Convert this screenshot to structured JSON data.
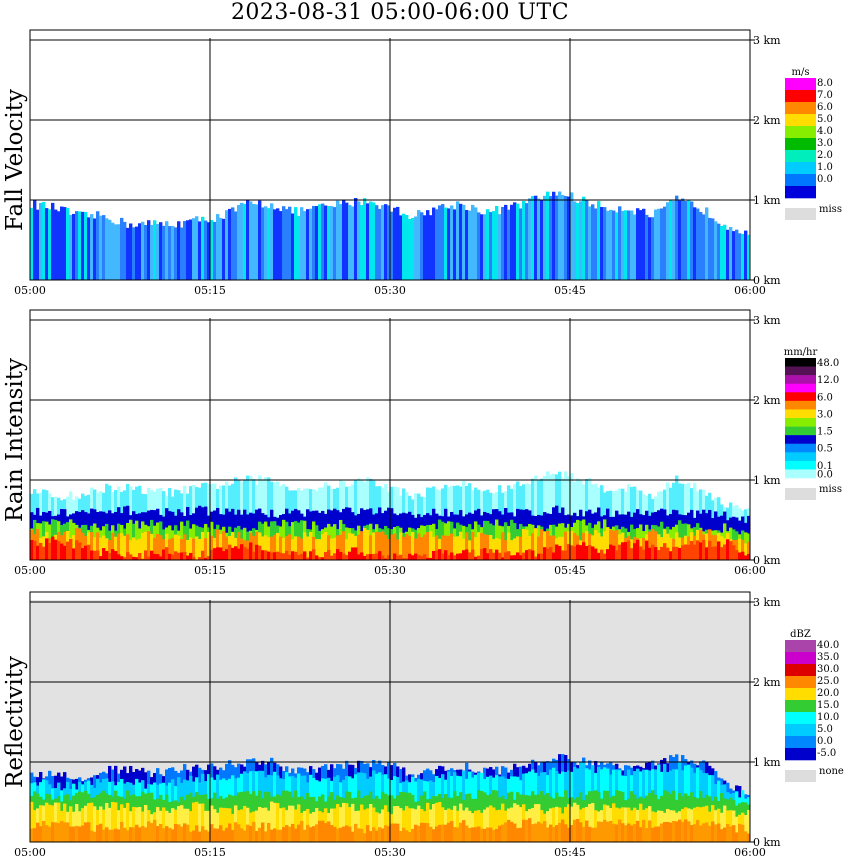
{
  "chart_data": {
    "title": "2023-08-31   05:00-06:00 UTC",
    "type": "heatmap",
    "x_ticks": [
      "05:00",
      "05:15",
      "05:30",
      "05:45",
      "06:00"
    ],
    "y_ticks": [
      "0 km",
      "1 km",
      "2 km",
      "3 km"
    ],
    "ylim_km": [
      0,
      3
    ],
    "grid": true,
    "panels": [
      {
        "id": "fall-velocity",
        "ylabel": "Fall Velocity",
        "unit": "m/s",
        "legend": [
          {
            "label": "8.0",
            "color": "#ff00ff"
          },
          {
            "label": "7.0",
            "color": "#ff0000"
          },
          {
            "label": "6.0",
            "color": "#ff8800"
          },
          {
            "label": "5.0",
            "color": "#ffdd00"
          },
          {
            "label": "4.0",
            "color": "#88ee00"
          },
          {
            "label": "3.0",
            "color": "#00bb00"
          },
          {
            "label": "2.0",
            "color": "#00eebb"
          },
          {
            "label": "1.0",
            "color": "#00ccff"
          },
          {
            "label": "0.0",
            "color": "#0077ff"
          },
          {
            "label": "",
            "color": "#0000dd"
          }
        ],
        "missing_label": "miss",
        "layers": [
          {
            "name": "main",
            "colors": [
              "#1133ff",
              "#2a7fff",
              "#44b8ff",
              "#00e8ee"
            ],
            "top": [
              0.95,
              0.9,
              0.8,
              0.8,
              0.7,
              0.7,
              0.7,
              0.75,
              0.8,
              0.95,
              0.95,
              0.85,
              0.9,
              0.95,
              1.0,
              0.9,
              0.8,
              0.9,
              0.95,
              0.85,
              0.9,
              1.0,
              1.1,
              1.0,
              0.9,
              0.9,
              0.8,
              1.0,
              0.9,
              0.7,
              0.6
            ]
          }
        ]
      },
      {
        "id": "rain-intensity",
        "ylabel": "Rain Intensity",
        "unit": "mm/hr",
        "legend": [
          {
            "label": "48.0",
            "color": "#000000"
          },
          {
            "label": "",
            "color": "#551155"
          },
          {
            "label": "12.0",
            "color": "#aa11aa"
          },
          {
            "label": "",
            "color": "#ff00ff"
          },
          {
            "label": "6.0",
            "color": "#ff0000"
          },
          {
            "label": "",
            "color": "#ff8800"
          },
          {
            "label": "3.0",
            "color": "#ffdd00"
          },
          {
            "label": "",
            "color": "#88ee00"
          },
          {
            "label": "1.5",
            "color": "#33cc33"
          },
          {
            "label": "",
            "color": "#0000cc"
          },
          {
            "label": "0.5",
            "color": "#0088ff"
          },
          {
            "label": "",
            "color": "#00ccff"
          },
          {
            "label": "0.1",
            "color": "#00ffff"
          },
          {
            "label": "0.0",
            "color": "#aaffff"
          }
        ],
        "missing_label": "miss",
        "layers": [
          {
            "name": "drizzle",
            "colors": [
              "#aaffff",
              "#55eeff"
            ],
            "top": [
              0.85,
              0.8,
              0.8,
              0.9,
              0.9,
              0.85,
              0.85,
              0.9,
              0.95,
              1.0,
              1.0,
              0.9,
              0.9,
              0.95,
              1.0,
              0.9,
              0.8,
              0.9,
              0.95,
              0.85,
              0.9,
              1.0,
              1.1,
              1.0,
              0.9,
              0.9,
              0.8,
              1.0,
              0.9,
              0.7,
              0.6
            ]
          },
          {
            "name": "blue-band",
            "colors": [
              "#0000cc"
            ],
            "top": [
              0.6,
              0.58,
              0.6,
              0.58,
              0.62,
              0.6,
              0.6,
              0.62,
              0.6,
              0.6,
              0.58,
              0.6,
              0.6,
              0.62,
              0.6,
              0.6,
              0.55,
              0.6,
              0.6,
              0.58,
              0.6,
              0.6,
              0.62,
              0.6,
              0.6,
              0.58,
              0.6,
              0.6,
              0.58,
              0.55,
              0.5
            ]
          },
          {
            "name": "green",
            "colors": [
              "#33cc33",
              "#88ee00"
            ],
            "top": [
              0.45,
              0.45,
              0.45,
              0.4,
              0.45,
              0.45,
              0.42,
              0.45,
              0.4,
              0.4,
              0.45,
              0.45,
              0.42,
              0.45,
              0.4,
              0.4,
              0.4,
              0.45,
              0.42,
              0.45,
              0.45,
              0.4,
              0.42,
              0.45,
              0.45,
              0.4,
              0.42,
              0.45,
              0.4,
              0.4,
              0.35
            ]
          },
          {
            "name": "yellow",
            "colors": [
              "#ffdd00",
              "#ff8800"
            ],
            "top": [
              0.35,
              0.3,
              0.35,
              0.3,
              0.3,
              0.32,
              0.3,
              0.3,
              0.35,
              0.3,
              0.3,
              0.32,
              0.3,
              0.3,
              0.35,
              0.3,
              0.3,
              0.32,
              0.3,
              0.3,
              0.3,
              0.35,
              0.32,
              0.3,
              0.35,
              0.3,
              0.35,
              0.3,
              0.35,
              0.3,
              0.25
            ]
          },
          {
            "name": "red",
            "colors": [
              "#ff0000",
              "#ff4400"
            ],
            "top": [
              0.2,
              0.25,
              0.18,
              0.1,
              0.05,
              0.08,
              0.12,
              0.05,
              0.15,
              0.18,
              0.1,
              0.05,
              0.08,
              0.12,
              0.1,
              0.05,
              0.05,
              0.1,
              0.08,
              0.1,
              0.05,
              0.08,
              0.15,
              0.18,
              0.12,
              0.2,
              0.18,
              0.15,
              0.2,
              0.22,
              0.1
            ]
          }
        ]
      },
      {
        "id": "reflectivity",
        "ylabel": "Reflectivity",
        "unit": "dBZ",
        "legend": [
          {
            "label": "40.0",
            "color": "#aa44aa"
          },
          {
            "label": "35.0",
            "color": "#cc00cc"
          },
          {
            "label": "30.0",
            "color": "#dd0000"
          },
          {
            "label": "25.0",
            "color": "#ff8800"
          },
          {
            "label": "20.0",
            "color": "#ffdd00"
          },
          {
            "label": "15.0",
            "color": "#33cc33"
          },
          {
            "label": "10.0",
            "color": "#00ffff"
          },
          {
            "label": "5.0",
            "color": "#00ccff"
          },
          {
            "label": "0.0",
            "color": "#0088ff"
          },
          {
            "label": "-5.0",
            "color": "#0000cc"
          }
        ],
        "missing_label": "none",
        "background": "#e2e2e2",
        "layers": [
          {
            "name": "edge",
            "colors": [
              "#0000cc",
              "#0077ff"
            ],
            "top": [
              0.85,
              0.85,
              0.8,
              0.9,
              0.9,
              0.85,
              0.9,
              0.95,
              0.95,
              1.0,
              1.0,
              0.9,
              0.9,
              0.95,
              1.0,
              0.95,
              0.85,
              0.9,
              0.95,
              0.9,
              0.9,
              1.0,
              1.05,
              1.0,
              0.95,
              0.95,
              1.0,
              1.05,
              1.0,
              0.75,
              0.6
            ]
          },
          {
            "name": "cyan",
            "colors": [
              "#00ccff",
              "#00ffff"
            ],
            "top": [
              0.75,
              0.7,
              0.7,
              0.75,
              0.75,
              0.72,
              0.75,
              0.8,
              0.8,
              0.85,
              0.85,
              0.8,
              0.78,
              0.8,
              0.85,
              0.8,
              0.75,
              0.8,
              0.85,
              0.8,
              0.8,
              0.85,
              0.9,
              0.95,
              0.9,
              0.85,
              0.9,
              0.95,
              0.9,
              0.7,
              0.55
            ]
          },
          {
            "name": "green",
            "colors": [
              "#33cc33"
            ],
            "top": [
              0.6,
              0.55,
              0.6,
              0.58,
              0.6,
              0.58,
              0.55,
              0.6,
              0.58,
              0.6,
              0.58,
              0.6,
              0.55,
              0.6,
              0.58,
              0.6,
              0.55,
              0.6,
              0.58,
              0.6,
              0.58,
              0.6,
              0.6,
              0.58,
              0.6,
              0.58,
              0.6,
              0.58,
              0.6,
              0.55,
              0.45
            ]
          },
          {
            "name": "yellow",
            "colors": [
              "#ffdd00",
              "#ffee44"
            ],
            "top": [
              0.45,
              0.45,
              0.42,
              0.45,
              0.45,
              0.4,
              0.42,
              0.45,
              0.4,
              0.42,
              0.45,
              0.42,
              0.4,
              0.45,
              0.42,
              0.4,
              0.42,
              0.45,
              0.42,
              0.4,
              0.45,
              0.42,
              0.4,
              0.45,
              0.42,
              0.45,
              0.4,
              0.42,
              0.45,
              0.4,
              0.35
            ]
          },
          {
            "name": "orange",
            "colors": [
              "#ff8800",
              "#ff9900"
            ],
            "top": [
              0.2,
              0.22,
              0.2,
              0.18,
              0.2,
              0.22,
              0.2,
              0.15,
              0.18,
              0.2,
              0.18,
              0.2,
              0.22,
              0.2,
              0.15,
              0.2,
              0.18,
              0.2,
              0.22,
              0.2,
              0.22,
              0.25,
              0.22,
              0.25,
              0.22,
              0.25,
              0.22,
              0.25,
              0.22,
              0.2,
              0.15
            ]
          }
        ]
      }
    ]
  }
}
